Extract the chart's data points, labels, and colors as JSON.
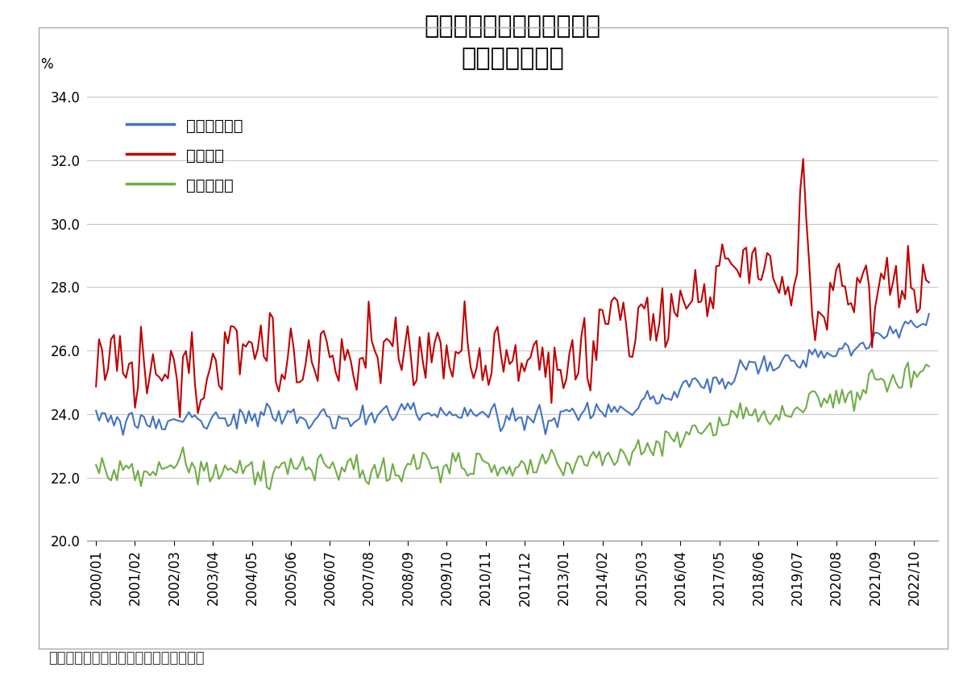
{
  "title_line1": "高水準にあるエンゲル係数",
  "title_line2": "（季節調整値）",
  "ylabel": "%",
  "ylim": [
    20.0,
    34.5
  ],
  "yticks": [
    20.0,
    22.0,
    24.0,
    26.0,
    28.0,
    30.0,
    32.0,
    34.0
  ],
  "xtick_labels": [
    "2000/01",
    "2001/02",
    "2002/03",
    "2003/04",
    "2004/05",
    "2005/06",
    "2006/07",
    "2007/08",
    "2008/09",
    "2009/10",
    "2010/11",
    "2011/12",
    "2013/01",
    "2014/02",
    "2015/03",
    "2016/04",
    "2017/05",
    "2018/06",
    "2019/07",
    "2020/08",
    "2021/09",
    "2022/10"
  ],
  "xtick_positions": [
    0,
    13,
    26,
    39,
    52,
    65,
    78,
    91,
    104,
    117,
    130,
    143,
    156,
    169,
    182,
    195,
    208,
    221,
    234,
    247,
    260,
    273
  ],
  "legend_labels": [
    "二人以上世帯",
    "無職世帯",
    "勤労者世帯"
  ],
  "line_colors": [
    "#4472C4",
    "#C00000",
    "#70AD47"
  ],
  "source_text": "（出所）総務省「家計調査」を基に作成",
  "background_color": "#FFFFFF",
  "grid_color": "#C8C8C8",
  "title_fontsize": 22,
  "legend_fontsize": 14,
  "tick_fontsize": 12,
  "source_fontsize": 13,
  "n_months": 279
}
